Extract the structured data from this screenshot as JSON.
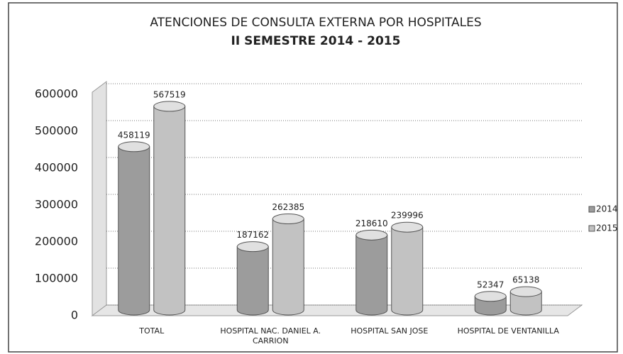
{
  "chart_data": {
    "type": "bar",
    "title": "ATENCIONES DE CONSULTA EXTERNA POR HOSPITALES",
    "subtitle": "II SEMESTRE 2014 - 2015",
    "categories": [
      "TOTAL",
      "HOSPITAL NAC. DANIEL A. CARRION",
      "HOSPITAL SAN JOSE",
      "HOSPITAL DE VENTANILLA"
    ],
    "series": [
      {
        "name": "2014",
        "color": "#9c9c9c",
        "values": [
          458119,
          187162,
          218610,
          52347
        ]
      },
      {
        "name": "2015",
        "color": "#c2c2c2",
        "values": [
          567519,
          262385,
          239996,
          65138
        ]
      }
    ],
    "ylim": [
      0,
      600000
    ],
    "yticks": [
      0,
      100000,
      200000,
      300000,
      400000,
      500000,
      600000
    ],
    "grid": true,
    "legend": "right"
  }
}
